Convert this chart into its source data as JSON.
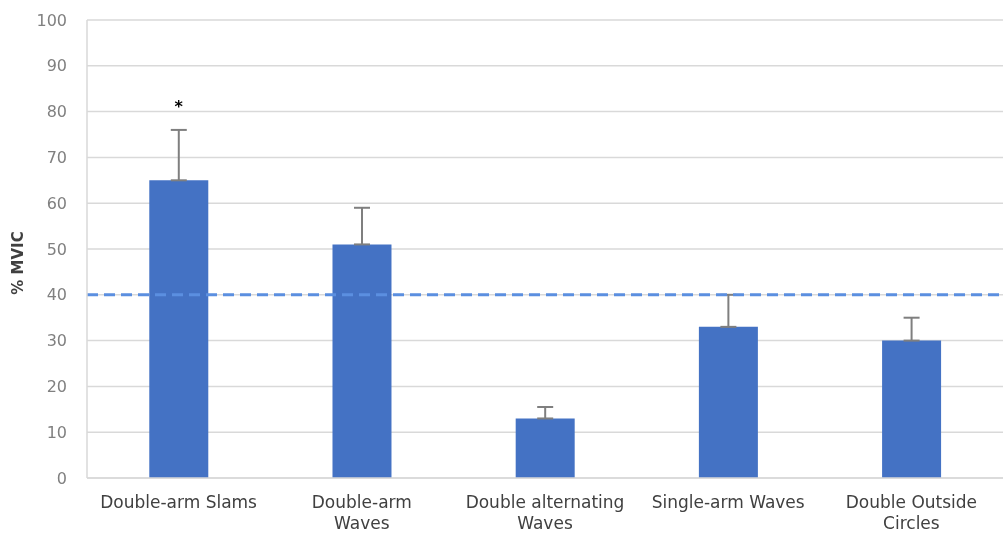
{
  "chart_data": {
    "type": "bar",
    "ylabel": "% MVIC",
    "categories": [
      "Double-arm Slams",
      "Double-arm Waves",
      "Double alternating Waves",
      "Single-arm Waves",
      "Double Outside Circles"
    ],
    "values": [
      65,
      51,
      13,
      33,
      30
    ],
    "color": "#4472c4",
    "errors": [
      [
        65,
        76
      ],
      [
        51,
        59
      ],
      [
        13,
        15.5
      ],
      [
        33,
        40
      ],
      [
        30,
        35
      ]
    ],
    "ylim": [
      0,
      100
    ],
    "yticks": [
      0,
      10,
      20,
      30,
      40,
      50,
      60,
      70,
      80,
      90,
      100
    ],
    "grid": "y",
    "ref_lines": [
      {
        "axis": "y",
        "value": 40,
        "color": "#5b8fe0",
        "line_style": "dashed"
      }
    ],
    "annotations": [
      "*"
    ]
  }
}
